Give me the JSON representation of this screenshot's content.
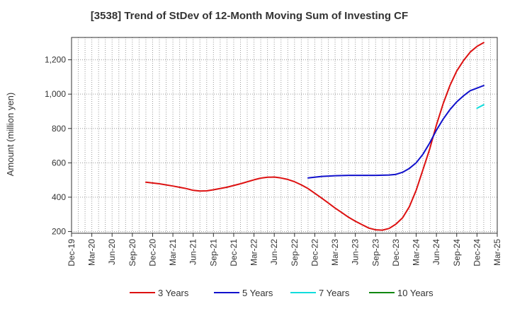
{
  "chart_data": {
    "type": "line",
    "title": "[3538]  Trend of StDev of 12-Month Moving Sum of Investing CF",
    "xlabel": "",
    "ylabel": "Amount (million yen)",
    "ylim": [
      190,
      1330
    ],
    "yticks": [
      200,
      400,
      600,
      800,
      1000,
      1200
    ],
    "ytick_labels": [
      "200",
      "400",
      "600",
      "800",
      "1,000",
      "1,200"
    ],
    "x_axis_start": "2019-12",
    "x_axis_end": "2025-03",
    "xtick_labels": [
      "Dec-19",
      "Mar-20",
      "Jun-20",
      "Sep-20",
      "Dec-20",
      "Mar-21",
      "Jun-21",
      "Sep-21",
      "Dec-21",
      "Mar-22",
      "Jun-22",
      "Sep-22",
      "Dec-22",
      "Mar-23",
      "Jun-23",
      "Sep-23",
      "Dec-23",
      "Mar-24",
      "Jun-24",
      "Sep-24",
      "Dec-24",
      "Mar-25"
    ],
    "grid": true,
    "legend_position": "bottom",
    "series": [
      {
        "name": "3 Years",
        "color": "#dd1111",
        "points": [
          [
            "2020-11",
            487
          ],
          [
            "2021-01",
            478
          ],
          [
            "2021-03",
            465
          ],
          [
            "2021-05",
            450
          ],
          [
            "2021-06",
            440
          ],
          [
            "2021-07",
            436
          ],
          [
            "2021-08",
            437
          ],
          [
            "2021-09",
            443
          ],
          [
            "2021-11",
            458
          ],
          [
            "2022-01",
            478
          ],
          [
            "2022-03",
            501
          ],
          [
            "2022-04",
            511
          ],
          [
            "2022-05",
            516
          ],
          [
            "2022-06",
            517
          ],
          [
            "2022-07",
            512
          ],
          [
            "2022-08",
            503
          ],
          [
            "2022-09",
            490
          ],
          [
            "2022-10",
            472
          ],
          [
            "2022-11",
            450
          ],
          [
            "2022-12",
            423
          ],
          [
            "2023-01",
            395
          ],
          [
            "2023-02",
            366
          ],
          [
            "2023-03",
            337
          ],
          [
            "2023-04",
            310
          ],
          [
            "2023-05",
            283
          ],
          [
            "2023-06",
            260
          ],
          [
            "2023-07",
            240
          ],
          [
            "2023-08",
            220
          ],
          [
            "2023-09",
            210
          ],
          [
            "2023-10",
            208
          ],
          [
            "2023-11",
            218
          ],
          [
            "2023-12",
            243
          ],
          [
            "2024-01",
            280
          ],
          [
            "2024-02",
            345
          ],
          [
            "2024-03",
            440
          ],
          [
            "2024-04",
            560
          ],
          [
            "2024-05",
            680
          ],
          [
            "2024-06",
            820
          ],
          [
            "2024-07",
            945
          ],
          [
            "2024-08",
            1050
          ],
          [
            "2024-09",
            1135
          ],
          [
            "2024-10",
            1195
          ],
          [
            "2024-11",
            1245
          ],
          [
            "2024-12",
            1278
          ],
          [
            "2025-01",
            1300
          ]
        ]
      },
      {
        "name": "5 Years",
        "color": "#1111cc",
        "points": [
          [
            "2022-11",
            512
          ],
          [
            "2023-01",
            521
          ],
          [
            "2023-03",
            525
          ],
          [
            "2023-05",
            527
          ],
          [
            "2023-07",
            527
          ],
          [
            "2023-09",
            527
          ],
          [
            "2023-11",
            529
          ],
          [
            "2023-12",
            533
          ],
          [
            "2024-01",
            545
          ],
          [
            "2024-02",
            568
          ],
          [
            "2024-03",
            600
          ],
          [
            "2024-04",
            650
          ],
          [
            "2024-05",
            715
          ],
          [
            "2024-06",
            790
          ],
          [
            "2024-07",
            855
          ],
          [
            "2024-08",
            910
          ],
          [
            "2024-09",
            955
          ],
          [
            "2024-10",
            990
          ],
          [
            "2024-11",
            1020
          ],
          [
            "2024-12",
            1035
          ],
          [
            "2025-01",
            1050
          ]
        ]
      },
      {
        "name": "7 Years",
        "color": "#11dddd",
        "points": [
          [
            "2024-12",
            918
          ],
          [
            "2025-01",
            938
          ]
        ]
      },
      {
        "name": "10 Years",
        "color": "#118811",
        "points": []
      }
    ]
  }
}
